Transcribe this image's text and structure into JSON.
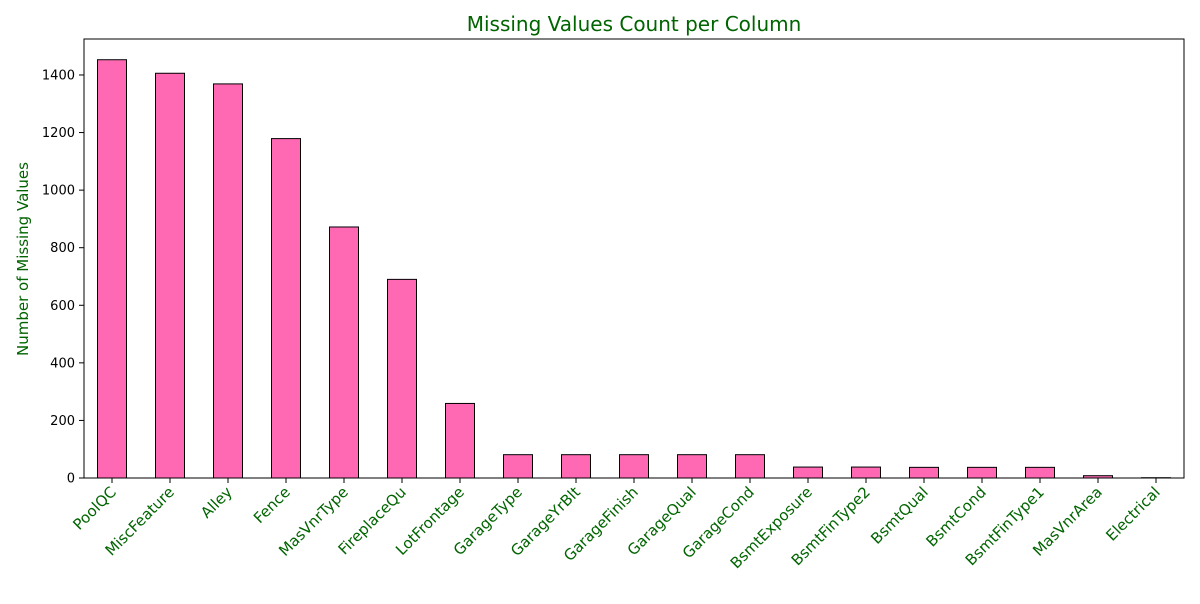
{
  "chart_data": {
    "type": "bar",
    "title": "Missing Values Count per Column",
    "xlabel": "",
    "ylabel": "Number of Missing Values",
    "categories": [
      "PoolQC",
      "MiscFeature",
      "Alley",
      "Fence",
      "MasVnrType",
      "FireplaceQu",
      "LotFrontage",
      "GarageType",
      "GarageYrBlt",
      "GarageFinish",
      "GarageQual",
      "GarageCond",
      "BsmtExposure",
      "BsmtFinType2",
      "BsmtQual",
      "BsmtCond",
      "BsmtFinType1",
      "MasVnrArea",
      "Electrical"
    ],
    "values": [
      1453,
      1406,
      1369,
      1179,
      872,
      690,
      259,
      81,
      81,
      81,
      81,
      81,
      38,
      38,
      37,
      37,
      37,
      8,
      1
    ],
    "ylim": [
      0,
      1525
    ],
    "y_ticks": [
      0,
      200,
      400,
      600,
      800,
      1000,
      1200,
      1400
    ],
    "grid": false,
    "legend": "none",
    "colors": {
      "bar_fill": "#ff69b4",
      "bar_edge": "#000000",
      "text_accent": "#006400",
      "axis": "#000000"
    }
  }
}
